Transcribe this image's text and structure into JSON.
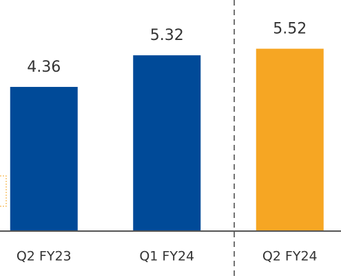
{
  "chart_data": {
    "type": "bar",
    "categories": [
      "Q2 FY23",
      "Q1 FY24",
      "Q2 FY24"
    ],
    "values": [
      4.36,
      5.32,
      5.52
    ],
    "colors": [
      "#004a98",
      "#004a98",
      "#f6a623"
    ],
    "ylim": [
      0,
      7
    ]
  }
}
